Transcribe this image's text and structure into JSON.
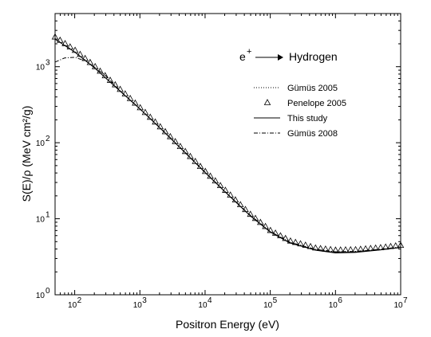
{
  "chart_data": {
    "type": "line",
    "title": "",
    "xlabel": "Positron Energy (eV)",
    "ylabel": "S(E)/ρ (MeV cm²/g)",
    "xscale": "log",
    "yscale": "log",
    "xlim": [
      50,
      10000000
    ],
    "ylim": [
      1,
      5000
    ],
    "x_ticks": [
      {
        "value": 100,
        "base": "10",
        "exp": "2"
      },
      {
        "value": 1000,
        "base": "10",
        "exp": "3"
      },
      {
        "value": 10000,
        "base": "10",
        "exp": "4"
      },
      {
        "value": 100000,
        "base": "10",
        "exp": "5"
      },
      {
        "value": 1000000,
        "base": "10",
        "exp": "6"
      },
      {
        "value": 10000000,
        "base": "10",
        "exp": "7"
      }
    ],
    "y_ticks": [
      {
        "value": 1,
        "base": "10",
        "exp": "0"
      },
      {
        "value": 10,
        "base": "10",
        "exp": "1"
      },
      {
        "value": 100,
        "base": "10",
        "exp": "2"
      },
      {
        "value": 1000,
        "base": "10",
        "exp": "3"
      }
    ],
    "grid": false,
    "legend_position": "right",
    "annotation": {
      "particle": "e",
      "charge": "+",
      "target": "Hydrogen"
    },
    "series": [
      {
        "name": "Gümüs 2005",
        "style": "dotted",
        "x": [
          50,
          100,
          200,
          500,
          1000,
          2000,
          5000,
          10000,
          20000,
          50000,
          100000,
          200000,
          500000,
          1000000,
          2000000,
          5000000,
          10000000
        ],
        "y": [
          2350,
          1580,
          980,
          480,
          280,
          160,
          74,
          41,
          23,
          11,
          6.8,
          4.9,
          3.95,
          3.68,
          3.72,
          3.98,
          4.25
        ]
      },
      {
        "name": "Penelope 2005",
        "style": "triangle",
        "x": [
          50,
          100,
          200,
          500,
          1000,
          2000,
          5000,
          10000,
          20000,
          50000,
          100000,
          200000,
          500000,
          1000000,
          2000000,
          5000000,
          10000000
        ],
        "y": [
          2450,
          1650,
          1020,
          500,
          290,
          165,
          76,
          42,
          24,
          11.3,
          7.0,
          5.1,
          4.1,
          3.85,
          3.9,
          4.15,
          4.45
        ]
      },
      {
        "name": "This study",
        "style": "solid",
        "x": [
          50,
          100,
          200,
          500,
          1000,
          2000,
          5000,
          10000,
          20000,
          50000,
          100000,
          200000,
          500000,
          1000000,
          2000000,
          5000000,
          10000000
        ],
        "y": [
          2300,
          1560,
          970,
          475,
          278,
          158,
          73,
          40.5,
          22.8,
          10.8,
          6.7,
          4.8,
          3.85,
          3.55,
          3.6,
          3.9,
          4.2
        ]
      },
      {
        "name": "Gümüs 2008",
        "style": "dashdot",
        "x": [
          50,
          70,
          100,
          150,
          200,
          300,
          500,
          1000,
          2000,
          5000,
          10000,
          20000,
          50000,
          100000,
          200000,
          500000,
          1000000,
          2000000,
          5000000,
          10000000
        ],
        "y": [
          1150,
          1300,
          1330,
          1180,
          990,
          760,
          480,
          280,
          160,
          74,
          41,
          23,
          11,
          6.8,
          4.9,
          3.95,
          3.68,
          3.72,
          3.98,
          4.25
        ]
      }
    ]
  }
}
